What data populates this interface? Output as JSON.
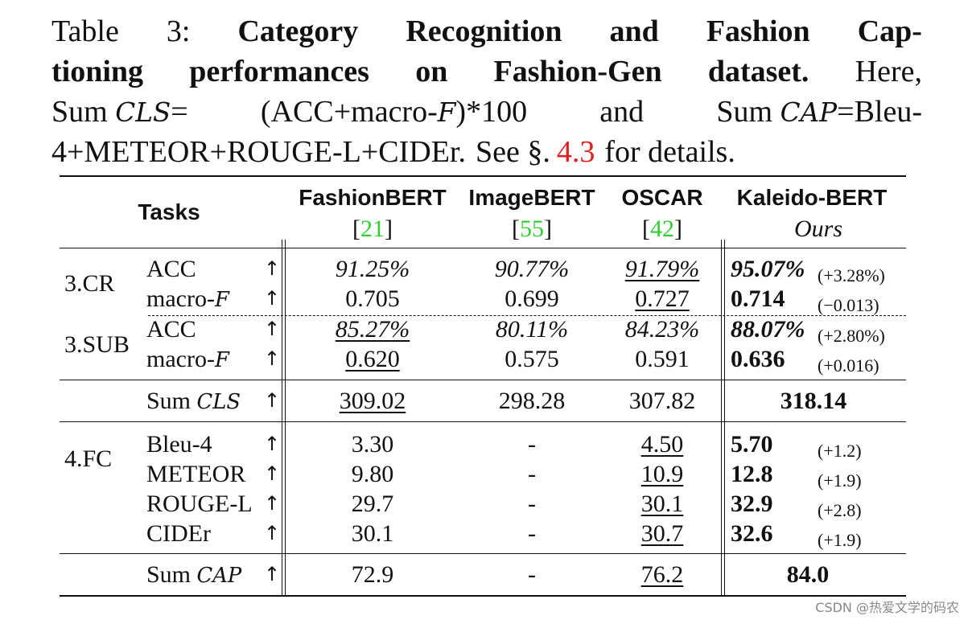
{
  "caption": {
    "line1": {
      "label": "Table",
      "number": "3:",
      "w1": "Category",
      "w2": "Recognition",
      "w3": "and",
      "w4": "Fashion",
      "w5": "Cap-"
    },
    "line2": {
      "w1": "tioning",
      "w2": "performances",
      "w3": "on",
      "w4": "Fashion-Gen",
      "w5": "dataset.",
      "w6": "Here,"
    },
    "line3": {
      "w1": "Sum",
      "cls_symbol": "CLS",
      "w2": "=",
      "w3": "(ACC+macro-",
      "f_symbol": "F",
      "w4": ")*100",
      "w5": "and",
      "w6": "Sum",
      "cap_symbol": "CAP",
      "w7": "=Bleu-"
    },
    "line4": {
      "w1": "4+METEOR+ROUGE-L+CIDEr.",
      "w2": "See §.",
      "ref": "4.3",
      "w3": "for details."
    }
  },
  "table": {
    "tasks_header": "Tasks",
    "columns": [
      {
        "name": "FashionBERT",
        "sub_open": "[",
        "ref": "21",
        "sub_close": "]"
      },
      {
        "name": "ImageBERT",
        "sub_open": "[",
        "ref": "55",
        "sub_close": "]"
      },
      {
        "name": "OSCAR",
        "sub_open": "[",
        "ref": "42",
        "sub_close": "]"
      },
      {
        "name": "Kaleido-BERT",
        "ours": "Ours"
      }
    ],
    "arrow": "↑",
    "groups": {
      "cr": "3.CR",
      "sub": "3.SUB",
      "fc": "4.FC"
    },
    "metric_labels": {
      "acc": "ACC",
      "macro_prefix": "macro-",
      "macro_symbol": "F",
      "sum": "Sum",
      "cls": "CLS",
      "cap": "CAP",
      "bleu": "Bleu-4",
      "meteor": "METEOR",
      "rouge": "ROUGE-L",
      "cider": "CIDEr"
    },
    "rows": {
      "cr_acc": {
        "fashionbert": "91.25%",
        "imagebert": "90.77%",
        "oscar": "91.79%",
        "kaleido": "95.07%",
        "delta": "(+3.28%)"
      },
      "cr_macro": {
        "fashionbert": "0.705",
        "imagebert": "0.699",
        "oscar": "0.727",
        "kaleido": "0.714",
        "delta": "(−0.013)"
      },
      "sub_acc": {
        "fashionbert": "85.27%",
        "imagebert": "80.11%",
        "oscar": "84.23%",
        "kaleido": "88.07%",
        "delta": "(+2.80%)"
      },
      "sub_macro": {
        "fashionbert": "0.620",
        "imagebert": "0.575",
        "oscar": "0.591",
        "kaleido": "0.636",
        "delta": "(+0.016)"
      },
      "sum_cls": {
        "fashionbert": "309.02",
        "imagebert": "298.28",
        "oscar": "307.82",
        "kaleido": "318.14"
      },
      "bleu": {
        "fashionbert": "3.30",
        "imagebert": "-",
        "oscar": "4.50",
        "kaleido": "5.70",
        "delta": "(+1.2)"
      },
      "meteor": {
        "fashionbert": "9.80",
        "imagebert": "-",
        "oscar": "10.9",
        "kaleido": "12.8",
        "delta": "(+1.9)"
      },
      "rouge": {
        "fashionbert": "29.7",
        "imagebert": "-",
        "oscar": "30.1",
        "kaleido": "32.9",
        "delta": "(+2.8)"
      },
      "cider": {
        "fashionbert": "30.1",
        "imagebert": "-",
        "oscar": "30.7",
        "kaleido": "32.6",
        "delta": "(+1.9)"
      },
      "sum_cap": {
        "fashionbert": "72.9",
        "imagebert": "-",
        "oscar": "76.2",
        "kaleido": "84.0"
      }
    }
  },
  "watermark": "CSDN @热爱文学的码农"
}
